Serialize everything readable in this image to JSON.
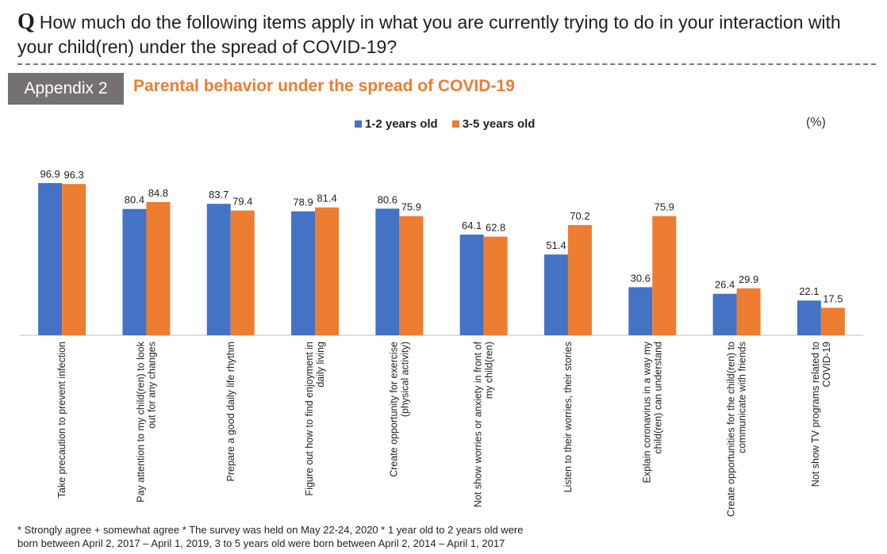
{
  "header": {
    "q_mark": "Q",
    "question": "How much do the following items apply in what you are currently trying to do in your interaction with your child(ren) under the spread of COVID-19?",
    "appendix_label": "Appendix 2",
    "title": "Parental behavior under the spread of COVID-19",
    "unit": "(%)"
  },
  "colors": {
    "series1": "#4472C4",
    "series2": "#ED7D31",
    "appendix_bg": "#767171",
    "title": "#ED7D31"
  },
  "chart_data": {
    "type": "bar",
    "title": "Parental behavior under the spread of COVID-19",
    "categories": [
      [
        "Take precaution to prevent infection"
      ],
      [
        "Pay attention to my child(ren) to look",
        "out for any changes"
      ],
      [
        "Prepare a good daily life rhythm"
      ],
      [
        "Figure out how to find enjoyment in",
        "daily living"
      ],
      [
        "Create opportunity for exercise",
        "(physical activity)"
      ],
      [
        "Not show worries or anxiety in front of",
        "my child(ren)"
      ],
      [
        "Listen to their worries, their stories"
      ],
      [
        "Explain coronavirus in a way my",
        "child(ren) can understand"
      ],
      [
        "Create opportunities for the child(ren) to",
        "communicate with friends"
      ],
      [
        "Not show TV programs related to",
        "COVID-19"
      ]
    ],
    "series": [
      {
        "name": "1-2 years old",
        "values": [
          96.9,
          80.4,
          83.7,
          78.9,
          80.6,
          64.1,
          51.4,
          30.6,
          26.4,
          22.1
        ]
      },
      {
        "name": "3-5 years old",
        "values": [
          96.3,
          84.8,
          79.4,
          81.4,
          75.9,
          62.8,
          70.2,
          75.9,
          29.9,
          17.5
        ]
      }
    ],
    "ylim": [
      0,
      100
    ],
    "grid": false,
    "legend": "top-center",
    "ylabel": "(%)"
  },
  "footnote": {
    "line1": "* Strongly agree + somewhat agree  * The survey was held on May 22-24, 2020  * 1 year old to 2 years old were",
    "line2": "born between April 2, 2017 – April 1, 2019,  3 to 5 years old were born between April 2, 2014 – April 1, 2017"
  }
}
